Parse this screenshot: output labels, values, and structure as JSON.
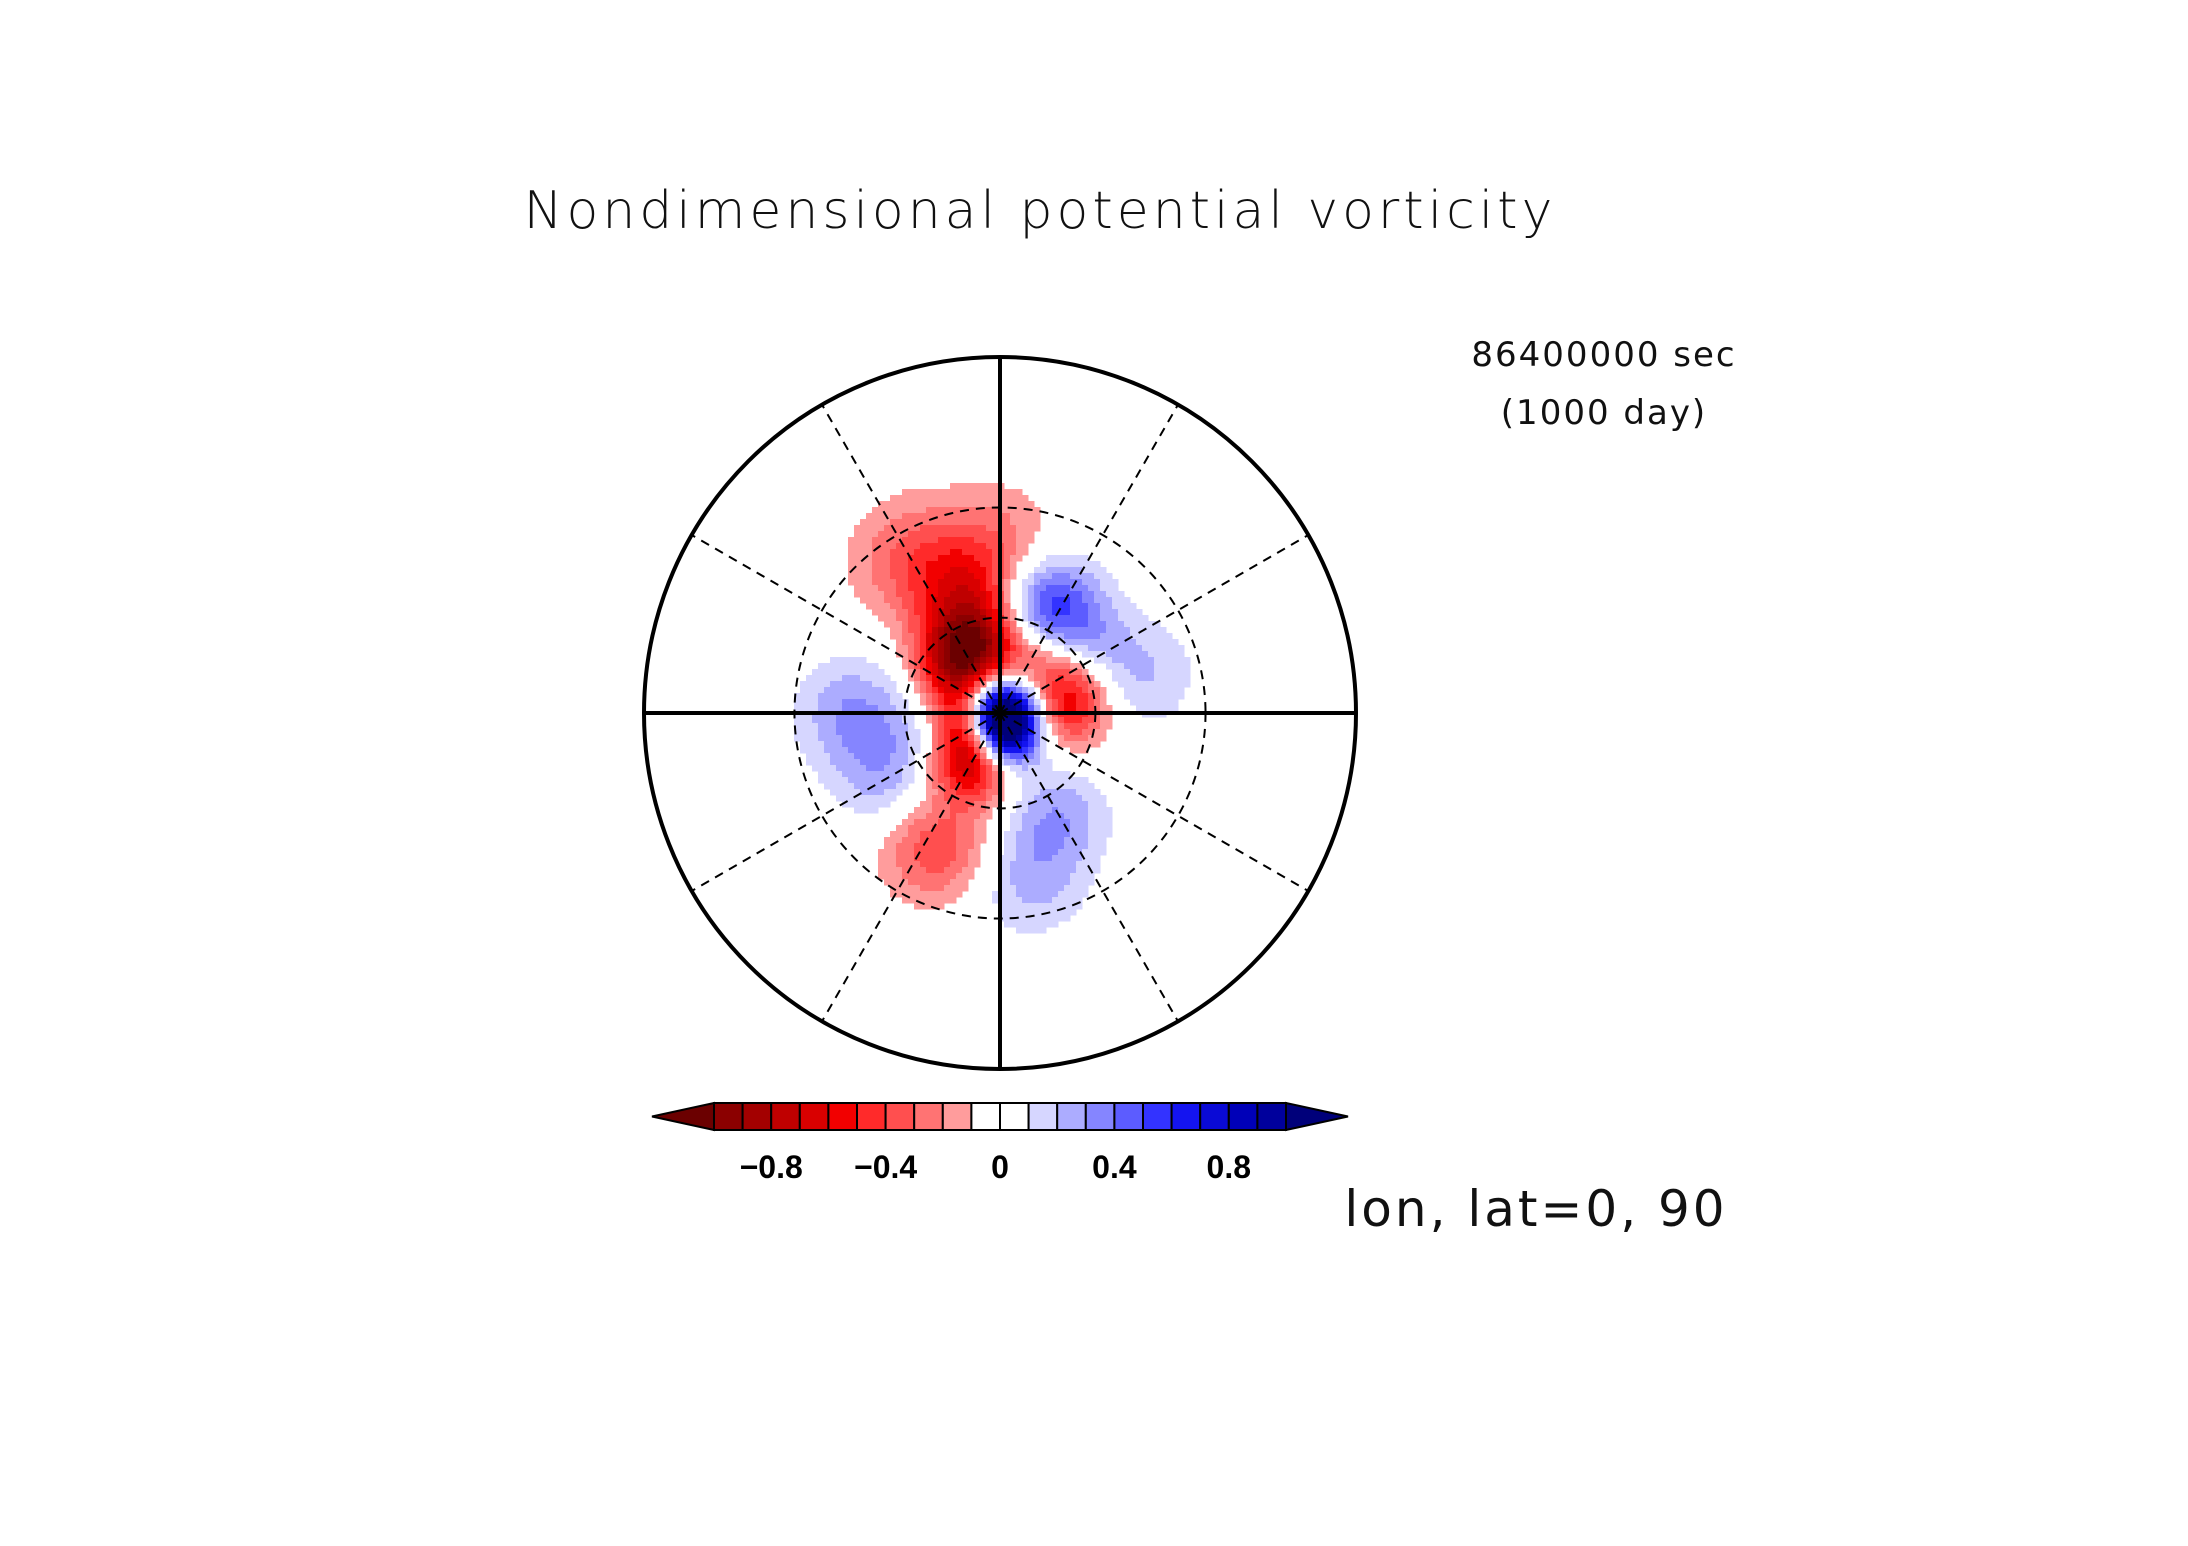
{
  "chart_data": {
    "type": "heatmap",
    "projection": "polar stereographic (north pole centered)",
    "title": "Nondimensional potential vorticity",
    "time_label": "86400000 sec",
    "time_sublabel": "(1000 day)",
    "projection_label": "lon, lat=0, 90",
    "grid": true,
    "colorbar": {
      "orientation": "horizontal",
      "placement": "bottom",
      "extend": "both",
      "levels": [
        -1.0,
        -0.9,
        -0.8,
        -0.7,
        -0.6,
        -0.5,
        -0.4,
        -0.3,
        -0.2,
        -0.1,
        0,
        0.1,
        0.2,
        0.3,
        0.4,
        0.5,
        0.6,
        0.7,
        0.8,
        0.9,
        1.0
      ],
      "tick_labels": [
        "−0.8",
        "−0.4",
        "0",
        "0.4",
        "0.8"
      ],
      "tick_values": [
        -0.8,
        -0.4,
        0,
        0.4,
        0.8
      ],
      "under_color": "#6b0000",
      "over_color": "#00007a",
      "colors": [
        "#8b0000",
        "#a30000",
        "#bf0000",
        "#d90000",
        "#f20000",
        "#ff2a2a",
        "#ff4f4f",
        "#ff7373",
        "#ff9c9c",
        "#ffffff",
        "#ffffff",
        "#d6d6ff",
        "#acacff",
        "#8585ff",
        "#5c5cff",
        "#3333ff",
        "#1414f0",
        "#0a0ad6",
        "#0000b8",
        "#00009c"
      ]
    },
    "contour_features": [
      {
        "lon": 0,
        "lat": 89,
        "value": 1.0
      },
      {
        "lon": 345,
        "lat": 82,
        "value": 0.6
      },
      {
        "lon": 25,
        "lat": 83,
        "value": 0.55
      },
      {
        "lon": 300,
        "lat": 82,
        "value": -0.65
      },
      {
        "lon": 330,
        "lat": 73,
        "value": -0.8
      },
      {
        "lon": 260,
        "lat": 75,
        "value": -0.6
      },
      {
        "lon": 220,
        "lat": 68,
        "value": -0.5
      },
      {
        "lon": 200,
        "lat": 68,
        "value": -0.6
      },
      {
        "lon": 145,
        "lat": 70,
        "value": -0.35
      },
      {
        "lon": 110,
        "lat": 67,
        "value": -0.4
      },
      {
        "lon": 90,
        "lat": 68,
        "value": -0.3
      },
      {
        "lon": 335,
        "lat": 45,
        "value": -0.4
      },
      {
        "lon": 195,
        "lat": 52,
        "value": -0.45
      },
      {
        "lon": 210,
        "lat": 37,
        "value": -0.3
      },
      {
        "lon": 155,
        "lat": 54,
        "value": 0.6
      },
      {
        "lon": 270,
        "lat": 72,
        "value": 0.4
      },
      {
        "lon": 225,
        "lat": 82,
        "value": 0.3
      },
      {
        "lon": 300,
        "lat": 50,
        "value": 0.25
      },
      {
        "lon": 270,
        "lat": 45,
        "value": 0.3
      },
      {
        "lon": 135,
        "lat": 80,
        "value": 0.3
      },
      {
        "lon": 125,
        "lat": 58,
        "value": 0.2
      },
      {
        "lon": 30,
        "lat": 54,
        "value": 0.25
      },
      {
        "lon": 10,
        "lat": 40,
        "value": 0.25
      },
      {
        "lon": 180,
        "lat": 38,
        "value": -0.2
      },
      {
        "lon": 105,
        "lat": 45,
        "value": 0.2
      }
    ]
  }
}
